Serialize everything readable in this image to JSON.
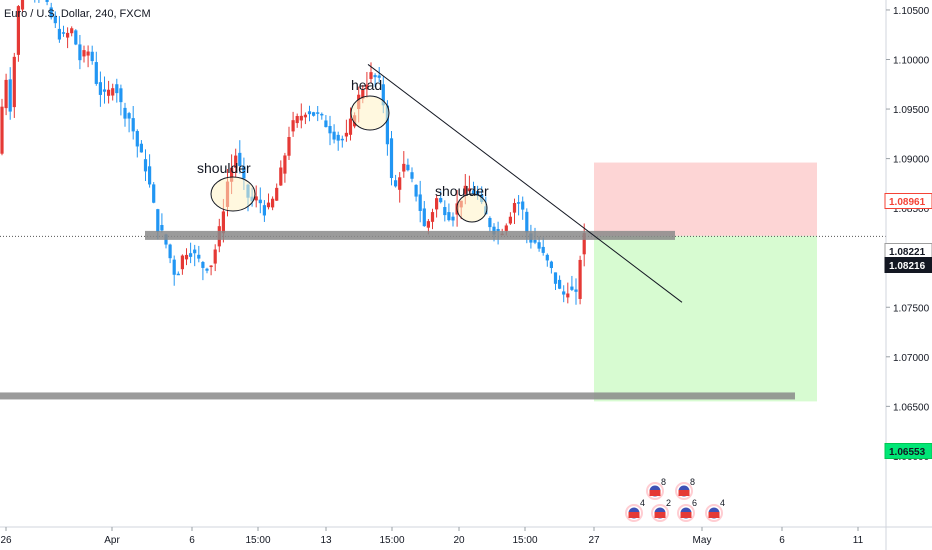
{
  "chart_title": "Euro / U.S. Dollar, 240, FXCM",
  "chart_data": {
    "type": "candlestick",
    "symbol": "Euro / U.S. Dollar",
    "interval": "240",
    "source": "FXCM",
    "ylim": [
      1.0575,
      1.1095
    ],
    "y_ticks": [
      "1.06000",
      "1.06500",
      "1.07000",
      "1.07500",
      "1.08000",
      "1.08500",
      "1.09000",
      "1.09500",
      "1.10000",
      "1.10500"
    ],
    "x_ticks": [
      "26",
      "Apr",
      "6",
      "15:00",
      "13",
      "15:00",
      "20",
      "15:00",
      "27",
      "May",
      "6",
      "11"
    ],
    "price_tags": [
      {
        "label": "1.08961",
        "value": 1.08961,
        "kind": "stop"
      },
      {
        "label": "1.08221",
        "value": 1.08221,
        "kind": "entry"
      },
      {
        "label": "1.08216",
        "value": 1.08216,
        "kind": "last"
      },
      {
        "label": "1.06553",
        "value": 1.06553,
        "kind": "target"
      }
    ],
    "neckline_level": 1.0822,
    "support_level": 1.0661,
    "trendline": {
      "from": 1.0995,
      "to": 1.0755
    },
    "annotations": [
      "shoulder",
      "head",
      "shoulder"
    ],
    "position": {
      "entry": 1.0822,
      "stop": 1.0896,
      "target": 1.0655
    },
    "grid": false,
    "colors": {
      "up": "#e53935",
      "down": "#2196f3",
      "stop_zone": "#fdd5d5",
      "target_zone": "#d7fbd1",
      "neckline": "#8a8a8a"
    }
  },
  "events": [
    {
      "count": "8"
    },
    {
      "count": "4"
    },
    {
      "count": "2"
    },
    {
      "count": "8"
    },
    {
      "count": "6"
    },
    {
      "count": "4"
    }
  ]
}
